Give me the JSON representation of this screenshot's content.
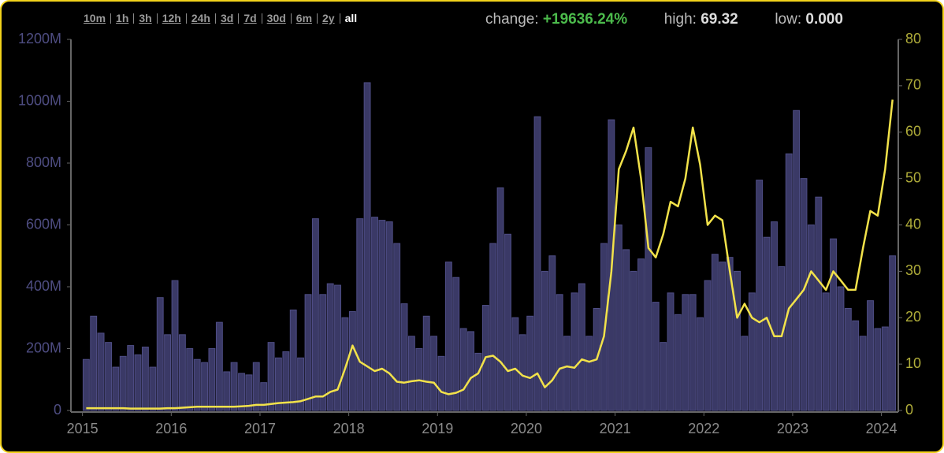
{
  "range_links": [
    "10m",
    "1h",
    "3h",
    "12h",
    "24h",
    "3d",
    "7d",
    "30d",
    "6m",
    "2y",
    "all"
  ],
  "stats": {
    "change_label": "change:",
    "change": "+19636.24%",
    "high_label": "high:",
    "high": "69.32",
    "low_label": "low:",
    "low": "0.000"
  },
  "chart_data": {
    "type": "bar-line",
    "x": [
      2015.042,
      2015.125,
      2015.208,
      2015.292,
      2015.375,
      2015.458,
      2015.542,
      2015.625,
      2015.708,
      2015.792,
      2015.875,
      2015.958,
      2016.042,
      2016.125,
      2016.208,
      2016.292,
      2016.375,
      2016.458,
      2016.542,
      2016.625,
      2016.708,
      2016.792,
      2016.875,
      2016.958,
      2017.042,
      2017.125,
      2017.208,
      2017.292,
      2017.375,
      2017.458,
      2017.542,
      2017.625,
      2017.708,
      2017.792,
      2017.875,
      2017.958,
      2018.042,
      2018.125,
      2018.208,
      2018.292,
      2018.375,
      2018.458,
      2018.542,
      2018.625,
      2018.708,
      2018.792,
      2018.875,
      2018.958,
      2019.042,
      2019.125,
      2019.208,
      2019.292,
      2019.375,
      2019.458,
      2019.542,
      2019.625,
      2019.708,
      2019.792,
      2019.875,
      2019.958,
      2020.042,
      2020.125,
      2020.208,
      2020.292,
      2020.375,
      2020.458,
      2020.542,
      2020.625,
      2020.708,
      2020.792,
      2020.875,
      2020.958,
      2021.042,
      2021.125,
      2021.208,
      2021.292,
      2021.375,
      2021.458,
      2021.542,
      2021.625,
      2021.708,
      2021.792,
      2021.875,
      2021.958,
      2022.042,
      2022.125,
      2022.208,
      2022.292,
      2022.375,
      2022.458,
      2022.542,
      2022.625,
      2022.708,
      2022.792,
      2022.875,
      2022.958,
      2023.042,
      2023.125,
      2023.208,
      2023.292,
      2023.375,
      2023.458,
      2023.542,
      2023.625,
      2023.708,
      2023.792,
      2023.875,
      2023.958,
      2024.042,
      2024.125
    ],
    "series": [
      {
        "type": "bar",
        "color": "#3a3966",
        "values": [
          165,
          305,
          250,
          220,
          140,
          175,
          210,
          180,
          205,
          140,
          365,
          245,
          420,
          245,
          200,
          165,
          155,
          200,
          285,
          125,
          155,
          120,
          115,
          155,
          90,
          220,
          170,
          190,
          325,
          170,
          375,
          620,
          375,
          410,
          405,
          300,
          320,
          620,
          1060,
          625,
          615,
          610,
          540,
          345,
          240,
          200,
          305,
          240,
          175,
          480,
          430,
          265,
          255,
          185,
          340,
          540,
          720,
          570,
          300,
          245,
          305,
          950,
          450,
          500,
          375,
          240,
          380,
          410,
          240,
          330,
          540,
          940,
          600,
          520,
          450,
          490,
          850,
          350,
          220,
          380,
          310,
          375,
          375,
          300,
          420,
          505,
          480,
          495,
          450,
          240,
          380,
          745,
          560,
          610,
          465,
          830,
          970,
          750,
          600,
          690,
          380,
          555,
          400,
          330,
          290,
          240,
          355,
          265,
          270,
          500
        ]
      },
      {
        "type": "line",
        "axis": "y2",
        "color": "#f2e24a",
        "values": [
          0.5,
          0.5,
          0.5,
          0.5,
          0.5,
          0.5,
          0.4,
          0.4,
          0.4,
          0.4,
          0.4,
          0.5,
          0.5,
          0.6,
          0.7,
          0.8,
          0.8,
          0.8,
          0.8,
          0.8,
          0.8,
          0.9,
          1.0,
          1.2,
          1.2,
          1.4,
          1.6,
          1.7,
          1.8,
          2.0,
          2.5,
          3.0,
          3.0,
          4.0,
          4.5,
          9.0,
          14,
          10.5,
          9.5,
          8.5,
          9.0,
          8.0,
          6.2,
          6.0,
          6.3,
          6.5,
          6.2,
          6.0,
          4.0,
          3.5,
          3.8,
          4.5,
          7.0,
          8.0,
          11.5,
          11.8,
          10.5,
          8.5,
          9.0,
          7.5,
          7.0,
          8.0,
          5.0,
          6.5,
          9.0,
          9.5,
          9.2,
          11.0,
          10.5,
          11.0,
          16.0,
          30.0,
          52,
          56,
          61,
          50,
          35,
          33,
          38,
          45,
          44,
          50,
          61,
          53,
          40,
          42,
          41,
          30,
          20,
          23,
          20,
          19,
          20,
          16,
          16,
          22,
          24,
          26,
          30,
          28,
          26,
          30,
          28,
          26,
          26,
          35,
          43,
          42,
          52,
          67
        ]
      }
    ],
    "xlim": [
      2014.87,
      2024.19
    ],
    "xticks": [
      2015,
      2016,
      2017,
      2018,
      2019,
      2020,
      2021,
      2022,
      2023,
      2024
    ],
    "ylim": [
      0,
      1200
    ],
    "yticks": [
      0,
      {
        "value": 200,
        "label": "200M"
      },
      {
        "value": 400,
        "label": "400M"
      },
      {
        "value": 600,
        "label": "600M"
      },
      {
        "value": 800,
        "label": "800M"
      },
      {
        "value": 1000,
        "label": "1000M"
      },
      {
        "value": 1200,
        "label": "1200M"
      }
    ],
    "y2lim": [
      0,
      80
    ],
    "y2ticks": [
      0,
      10,
      20,
      30,
      40,
      50,
      60,
      70,
      80
    ]
  }
}
